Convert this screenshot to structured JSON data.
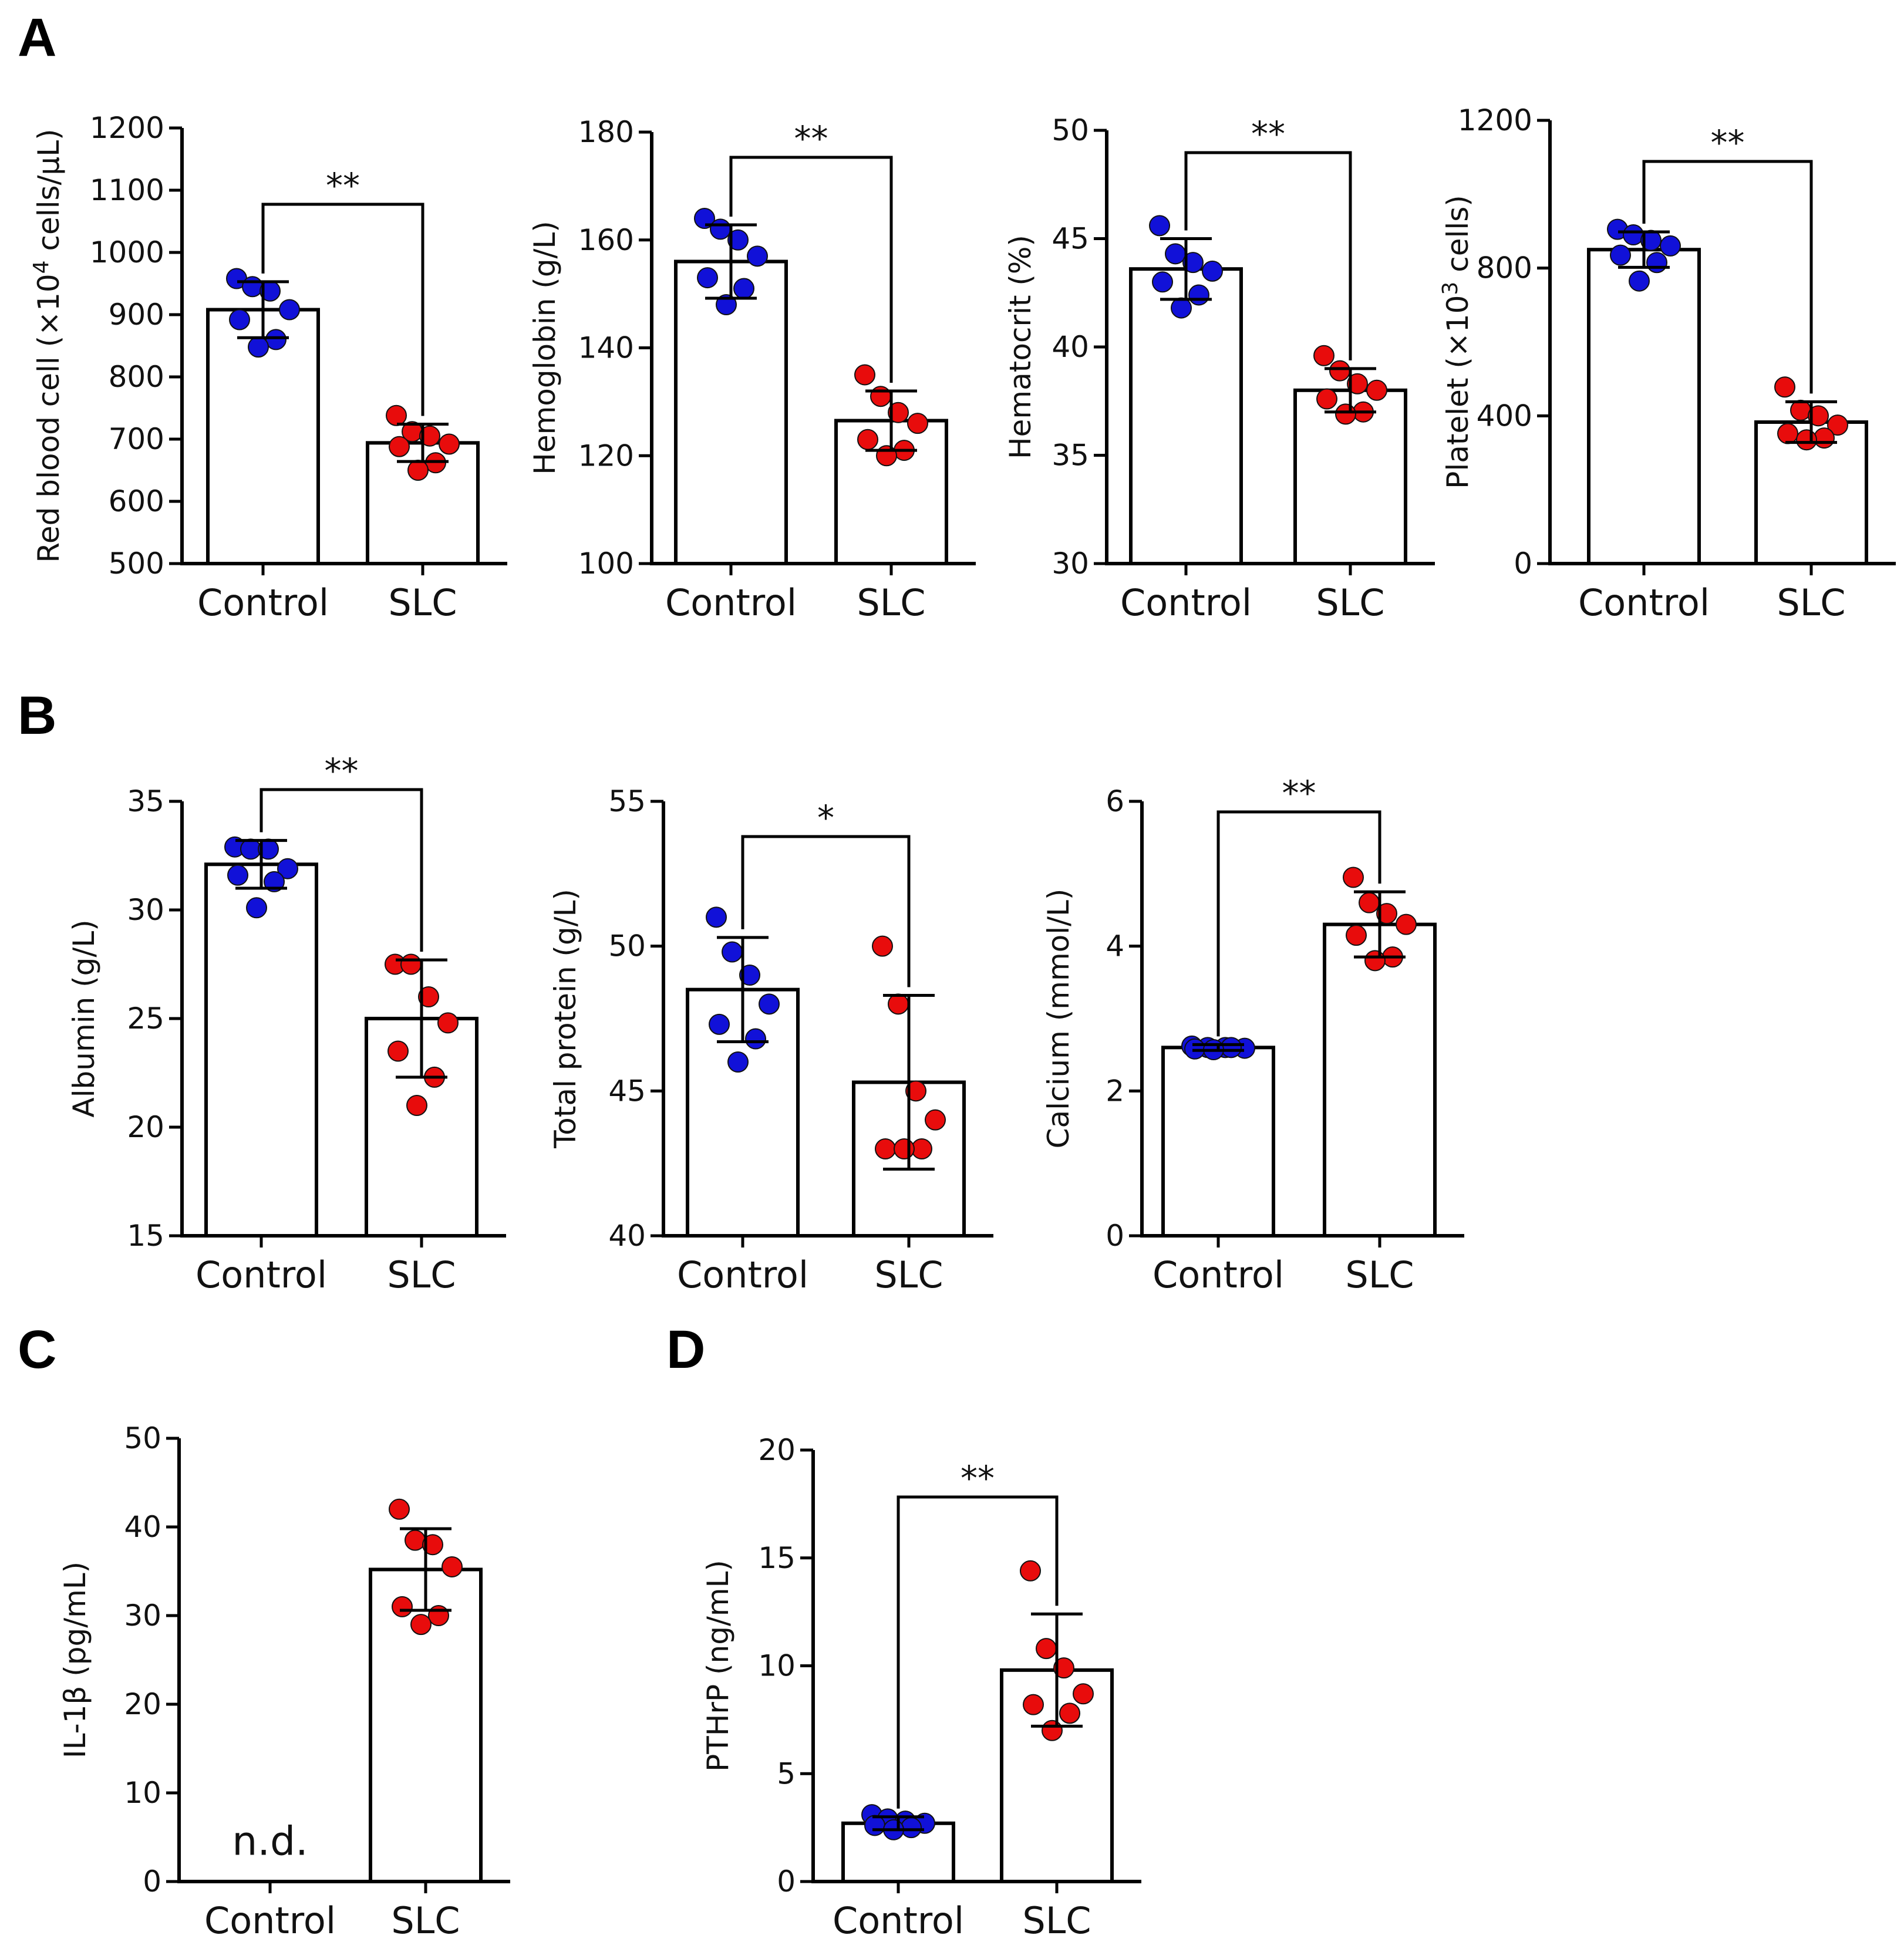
{
  "panel_letters": [
    "A",
    "B",
    "C",
    "D"
  ],
  "colors": {
    "control": "#1111d8",
    "slc": "#e80c0c",
    "ink": "#000000"
  },
  "chart_data": [
    {
      "type": "bar",
      "panel": "A",
      "title": "",
      "categories": [
        "Control",
        "SLC"
      ],
      "ylabel": "Red blood cell (×10^4 cells/µL)",
      "ylabel_parts": [
        "Red blood cell (×10",
        "4",
        " cells/µL)"
      ],
      "ylim": [
        500,
        1200
      ],
      "yticks": [
        500,
        600,
        700,
        800,
        900,
        1000,
        1100,
        1200
      ],
      "yticks_labels": [
        "500",
        "600",
        "700",
        "800",
        "900",
        "1000",
        "1100",
        "1200"
      ],
      "series": [
        {
          "name": "Control",
          "mean": 908,
          "sd": 45,
          "points": [
            958,
            945,
            938,
            908,
            892,
            860,
            848
          ]
        },
        {
          "name": "SLC",
          "mean": 694,
          "sd": 30,
          "points": [
            738,
            712,
            705,
            692,
            688,
            662,
            650
          ]
        }
      ],
      "significance": "**"
    },
    {
      "type": "bar",
      "panel": "A",
      "title": "",
      "categories": [
        "Control",
        "SLC"
      ],
      "ylabel": "Hemoglobin (g/L)",
      "ylim": [
        100,
        180
      ],
      "yticks": [
        100,
        120,
        140,
        160,
        180
      ],
      "yticks_labels": [
        "100",
        "120",
        "140",
        "160",
        "180"
      ],
      "series": [
        {
          "name": "Control",
          "mean": 156,
          "sd": 6.8,
          "points": [
            164,
            162,
            160,
            157,
            153,
            151,
            148
          ]
        },
        {
          "name": "SLC",
          "mean": 126.5,
          "sd": 5.5,
          "points": [
            135,
            131,
            128,
            126,
            123,
            121,
            120
          ]
        }
      ],
      "significance": "**"
    },
    {
      "type": "bar",
      "panel": "A",
      "title": "",
      "categories": [
        "Control",
        "SLC"
      ],
      "ylabel": "Hematocrit (%)",
      "ylim": [
        30,
        50
      ],
      "yticks": [
        30,
        35,
        40,
        45,
        50
      ],
      "yticks_labels": [
        "30",
        "35",
        "40",
        "45",
        "50"
      ],
      "series": [
        {
          "name": "Control",
          "mean": 43.6,
          "sd": 1.4,
          "points": [
            45.6,
            44.3,
            43.9,
            43.5,
            43.0,
            42.4,
            41.8
          ]
        },
        {
          "name": "SLC",
          "mean": 38.0,
          "sd": 1.0,
          "points": [
            39.6,
            38.9,
            38.3,
            38.0,
            37.6,
            37.0,
            36.9
          ]
        }
      ],
      "significance": "**"
    },
    {
      "type": "bar",
      "panel": "A",
      "title": "",
      "categories": [
        "Control",
        "SLC"
      ],
      "ylabel": "Platelet (×10^3 cells)",
      "ylabel_parts": [
        "Platelet (×10",
        "3",
        " cells)"
      ],
      "ylim": [
        0,
        1200
      ],
      "yticks": [
        0,
        400,
        800,
        1200
      ],
      "yticks_labels": [
        "0",
        "400",
        "800",
        "1200"
      ],
      "series": [
        {
          "name": "Control",
          "mean": 850,
          "sd": 48,
          "points": [
            905,
            890,
            875,
            860,
            835,
            815,
            765
          ]
        },
        {
          "name": "SLC",
          "mean": 383,
          "sd": 55,
          "points": [
            478,
            415,
            400,
            375,
            352,
            340,
            335
          ]
        }
      ],
      "significance": "**"
    },
    {
      "type": "bar",
      "panel": "B",
      "title": "",
      "categories": [
        "Control",
        "SLC"
      ],
      "ylabel": "Albumin (g/L)",
      "ylim": [
        15,
        35
      ],
      "yticks": [
        15,
        20,
        25,
        30,
        35
      ],
      "yticks_labels": [
        "15",
        "20",
        "25",
        "30",
        "35"
      ],
      "series": [
        {
          "name": "Control",
          "mean": 32.1,
          "sd": 1.1,
          "points": [
            32.9,
            32.8,
            32.8,
            31.9,
            31.6,
            31.3,
            30.1
          ]
        },
        {
          "name": "SLC",
          "mean": 25.0,
          "sd": 2.7,
          "points": [
            27.5,
            27.5,
            26.0,
            24.8,
            23.5,
            22.3,
            21.0
          ]
        }
      ],
      "significance": "**"
    },
    {
      "type": "bar",
      "panel": "B",
      "title": "",
      "categories": [
        "Control",
        "SLC"
      ],
      "ylabel": "Total protein (g/L)",
      "ylim": [
        40,
        55
      ],
      "yticks": [
        40,
        45,
        50,
        55
      ],
      "yticks_labels": [
        "40",
        "45",
        "50",
        "55"
      ],
      "series": [
        {
          "name": "Control",
          "mean": 48.5,
          "sd": 1.8,
          "points": [
            51.0,
            49.8,
            49.0,
            48.0,
            47.3,
            46.8,
            46.0
          ]
        },
        {
          "name": "SLC",
          "mean": 45.3,
          "sd": 3.0,
          "points": [
            50.0,
            48.0,
            45.0,
            44.0,
            43.0,
            43.0,
            43.0
          ]
        }
      ],
      "significance": "*"
    },
    {
      "type": "bar",
      "panel": "B",
      "title": "",
      "categories": [
        "Control",
        "SLC"
      ],
      "ylabel": "Calcium (mmol/L)",
      "ylim": [
        0,
        6
      ],
      "yticks": [
        0,
        2,
        4,
        6
      ],
      "yticks_labels": [
        "0",
        "2",
        "4",
        "6"
      ],
      "series": [
        {
          "name": "Control",
          "mean": 2.6,
          "sd": 0.04,
          "points": [
            2.62,
            2.6,
            2.6,
            2.59,
            2.58,
            2.6,
            2.57
          ]
        },
        {
          "name": "SLC",
          "mean": 4.3,
          "sd": 0.45,
          "points": [
            4.95,
            4.6,
            4.45,
            4.3,
            4.15,
            3.85,
            3.8
          ]
        }
      ],
      "significance": "**"
    },
    {
      "type": "bar",
      "panel": "C",
      "title": "",
      "categories": [
        "Control",
        "SLC"
      ],
      "ylabel": "IL-1β (pg/mL)",
      "ylim": [
        0,
        50
      ],
      "yticks": [
        0,
        10,
        20,
        30,
        40,
        50
      ],
      "yticks_labels": [
        "0",
        "10",
        "20",
        "30",
        "40",
        "50"
      ],
      "annotation": "n.d.",
      "series": [
        {
          "name": "Control",
          "mean": null,
          "sd": null,
          "points": []
        },
        {
          "name": "SLC",
          "mean": 35.2,
          "sd": 4.6,
          "points": [
            42.0,
            38.5,
            38.0,
            35.5,
            31.0,
            30.0,
            29.0
          ]
        }
      ],
      "significance": ""
    },
    {
      "type": "bar",
      "panel": "D",
      "title": "",
      "categories": [
        "Control",
        "SLC"
      ],
      "ylabel": "PTHrP (ng/mL)",
      "ylim": [
        0,
        20
      ],
      "yticks": [
        0,
        5,
        10,
        15,
        20
      ],
      "yticks_labels": [
        "0",
        "5",
        "10",
        "15",
        "20"
      ],
      "series": [
        {
          "name": "Control",
          "mean": 2.7,
          "sd": 0.3,
          "points": [
            3.1,
            2.9,
            2.8,
            2.7,
            2.6,
            2.5,
            2.4
          ]
        },
        {
          "name": "SLC",
          "mean": 9.8,
          "sd": 2.6,
          "points": [
            14.4,
            10.8,
            9.9,
            8.7,
            8.2,
            7.8,
            7.0
          ]
        }
      ],
      "significance": "**"
    }
  ]
}
